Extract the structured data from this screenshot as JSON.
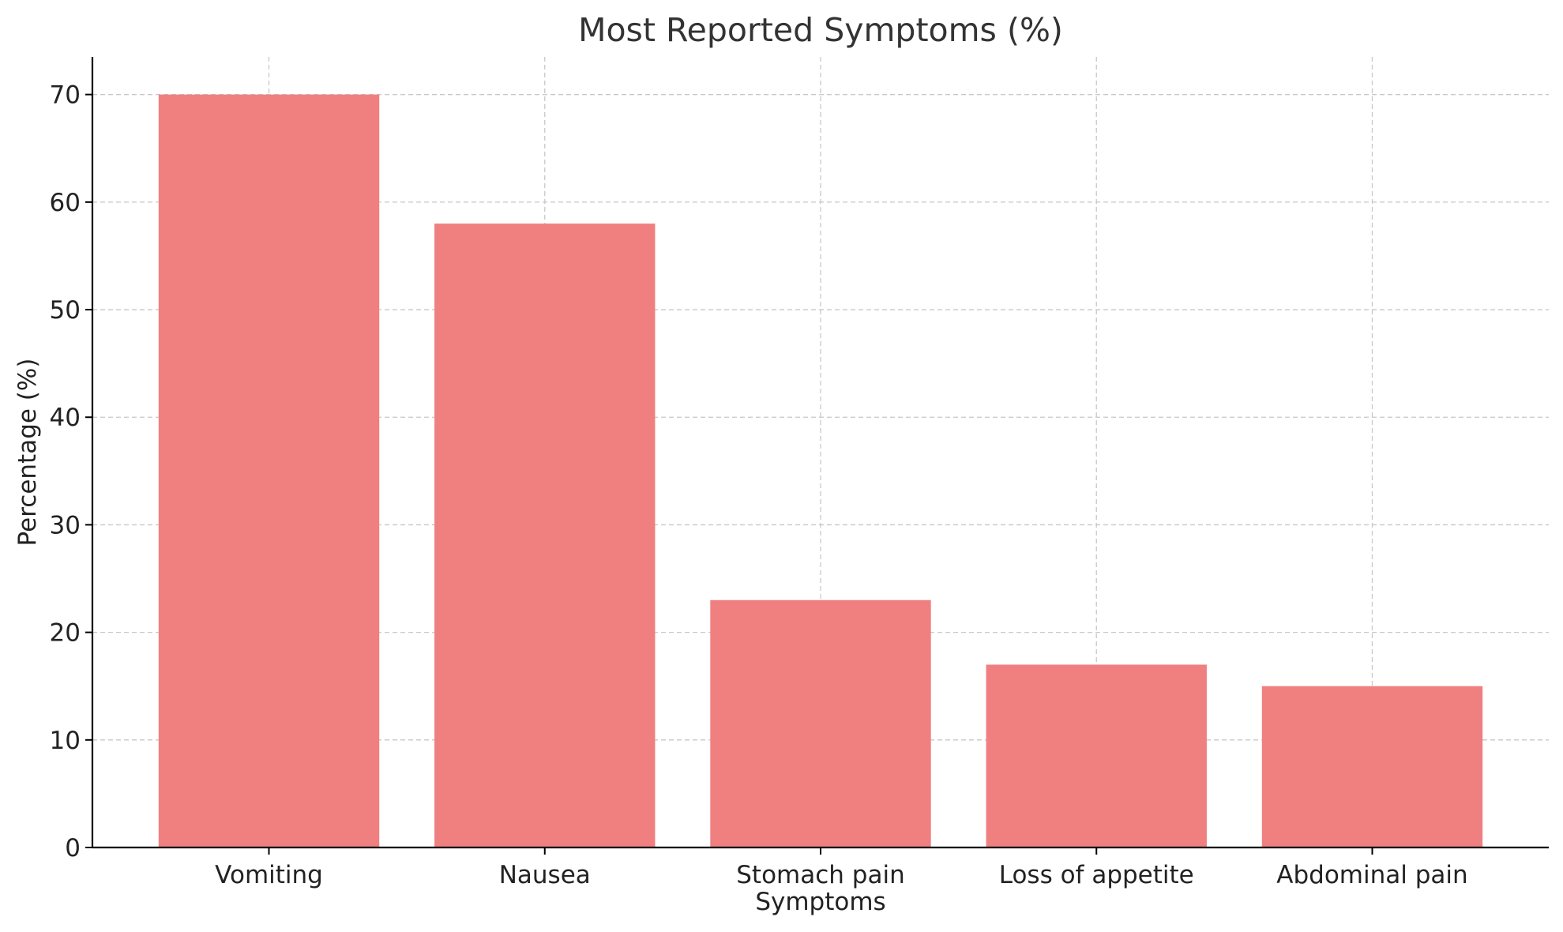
{
  "chart_data": {
    "type": "bar",
    "title": "Most Reported Symptoms (%)",
    "xlabel": "Symptoms",
    "ylabel": "Percentage (%)",
    "categories": [
      "Vomiting",
      "Nausea",
      "Stomach pain",
      "Loss of appetite",
      "Abdominal pain"
    ],
    "values": [
      70,
      58,
      23,
      17,
      15
    ],
    "ylim": [
      0,
      73.5
    ],
    "yticks": [
      0,
      10,
      20,
      30,
      40,
      50,
      60,
      70
    ],
    "grid": true,
    "bar_color": "#f08080"
  }
}
